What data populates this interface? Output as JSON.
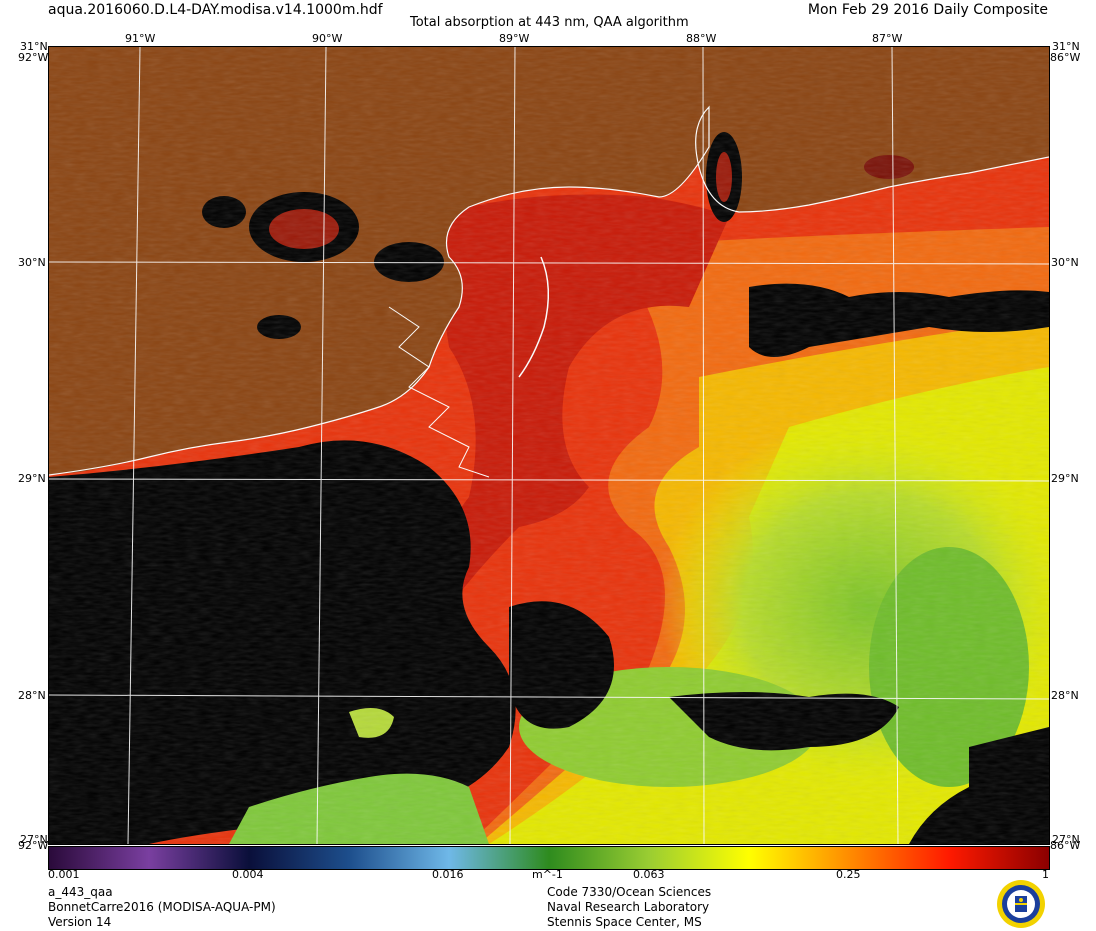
{
  "header": {
    "filename": "aqua.2016060.D.L4-DAY.modisa.v14.1000m.hdf",
    "title": "Total absorption at 443 nm, QAA algorithm",
    "date": "Mon Feb 29 2016 Daily Composite"
  },
  "map": {
    "lon_top_labels": [
      "91°W",
      "90°W",
      "89°W",
      "88°W",
      "87°W"
    ],
    "lat_labels": [
      "30°N",
      "29°N",
      "28°N"
    ],
    "corner": {
      "top_left_lat": "31°N",
      "top_right_lat": "31°N",
      "top_left_lon": "92°W",
      "top_right_lon": "86°W",
      "bottom_left_lat": "27°N",
      "bottom_right_lat": "27°N",
      "bottom_left_lon": "92°W",
      "bottom_right_lon": "86°W"
    },
    "colors": {
      "land": "#8b4513",
      "no_data": "#000000",
      "coastline": "#ffffff",
      "graticule": "#ffffff"
    }
  },
  "colorbar": {
    "ticks": [
      "0.001",
      "0.004",
      "0.016",
      "0.063",
      "0.25",
      "1"
    ],
    "unit": "m^-1",
    "colors": [
      "#2a0a3a",
      "#7a3fa0",
      "#0a0f3a",
      "#1d4e8c",
      "#6fb8e8",
      "#2e8b1e",
      "#9acd32",
      "#ffff00",
      "#ff8c00",
      "#ff1a00",
      "#8b0000"
    ]
  },
  "footer": {
    "product": "a_443_qaa",
    "dataset": "BonnetCarre2016 (MODISA-AQUA-PM)",
    "version": "Version 14",
    "org_line1": "Code 7330/Ocean Sciences",
    "org_line2": "Naval Research Laboratory",
    "org_line3": "Stennis Space Center, MS",
    "logo_icon": "nrl-seal-icon"
  }
}
